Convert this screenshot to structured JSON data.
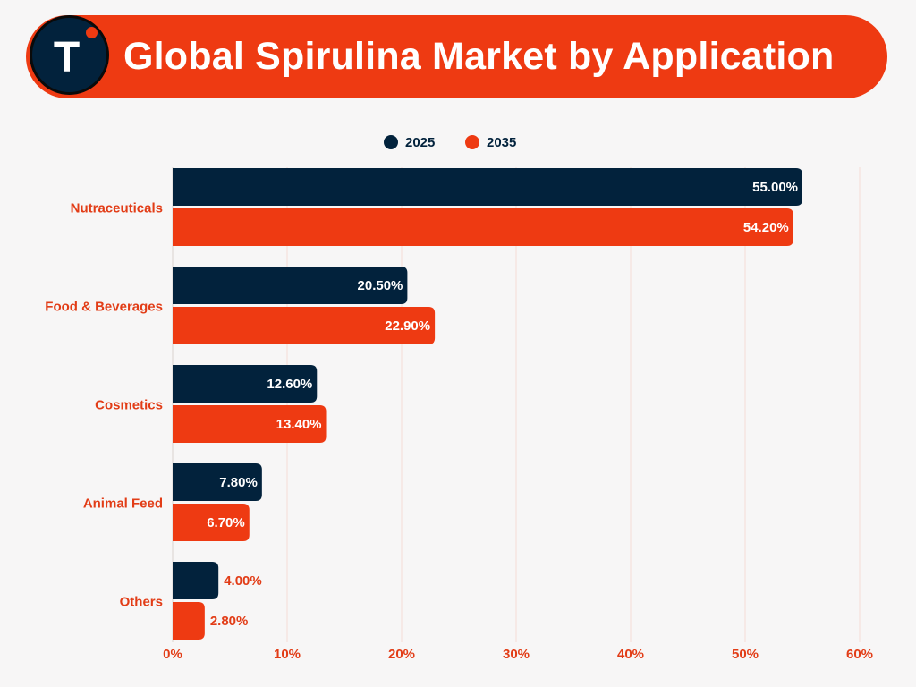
{
  "header": {
    "logo_letter": "T",
    "title": "Global Spirulina Market by Application"
  },
  "colors": {
    "brand_orange": "#ee3a12",
    "navy": "#02223c",
    "background": "#f7f6f6",
    "label_text": "#e23c16",
    "grid": "#f4dcd6"
  },
  "chart_data": {
    "type": "bar",
    "orientation": "horizontal",
    "title": "Global Spirulina Market by Application",
    "categories": [
      "Nutraceuticals",
      "Food & Beverages",
      "Cosmetics",
      "Animal Feed",
      "Others"
    ],
    "series": [
      {
        "name": "2025",
        "color": "#02223c",
        "values": [
          55.0,
          20.5,
          12.6,
          7.8,
          4.0
        ],
        "labels": [
          "55.00%",
          "20.50%",
          "12.60%",
          "7.80%",
          "4.00%"
        ]
      },
      {
        "name": "2035",
        "color": "#ee3a12",
        "values": [
          54.2,
          22.9,
          13.4,
          6.7,
          2.8
        ],
        "labels": [
          "54.20%",
          "22.90%",
          "13.40%",
          "6.70%",
          "2.80%"
        ]
      }
    ],
    "xlim": [
      0,
      60
    ],
    "xticks": [
      0,
      10,
      20,
      30,
      40,
      50,
      60
    ],
    "xtick_labels": [
      "0%",
      "10%",
      "20%",
      "30%",
      "40%",
      "50%",
      "60%"
    ],
    "grid": true,
    "legend": "top-center"
  }
}
